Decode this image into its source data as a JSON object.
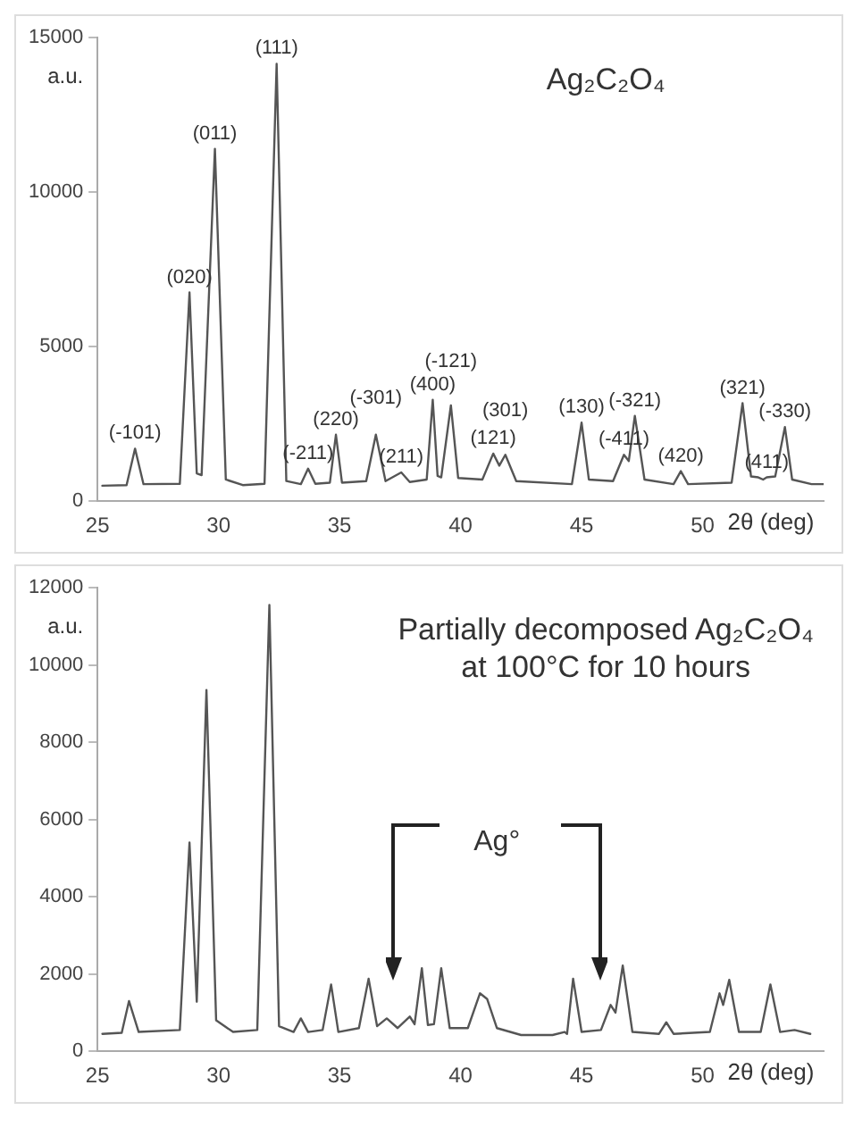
{
  "chart_data": [
    {
      "type": "line",
      "title": "Ag₂C₂O₄",
      "xlabel": "2θ (deg)",
      "ylabel": "a.u.",
      "xlim": [
        25,
        55
      ],
      "xticks": [
        25,
        30,
        35,
        40,
        45,
        50
      ],
      "ylim": [
        0,
        15000
      ],
      "yticks": [
        0,
        5000,
        10000,
        15000
      ],
      "grid": false,
      "legend": false,
      "marker": "none",
      "line_style": "solid",
      "series": [
        {
          "color": "#555555",
          "x": [
            25.2,
            26.2,
            26.55,
            26.9,
            28.4,
            28.8,
            29.1,
            29.3,
            29.85,
            30.3,
            31.0,
            31.9,
            32.4,
            32.8,
            33.4,
            33.7,
            34.0,
            34.6,
            34.85,
            35.1,
            36.1,
            36.5,
            36.9,
            37.55,
            37.9,
            38.6,
            38.85,
            39.05,
            39.2,
            39.6,
            39.9,
            40.9,
            41.35,
            41.6,
            41.85,
            42.3,
            44.6,
            45.0,
            45.3,
            46.3,
            46.75,
            46.95,
            47.2,
            47.6,
            48.8,
            49.1,
            49.4,
            51.2,
            51.65,
            52.0,
            52.3,
            52.5,
            52.65,
            53.0,
            53.4,
            53.7,
            54.5,
            55
          ],
          "values": [
            500,
            520,
            1700,
            550,
            560,
            6750,
            900,
            840,
            11400,
            700,
            520,
            560,
            14150,
            650,
            550,
            1050,
            560,
            600,
            2150,
            600,
            650,
            2150,
            650,
            930,
            620,
            700,
            3280,
            820,
            770,
            3100,
            750,
            700,
            1540,
            1150,
            1500,
            650,
            550,
            2540,
            700,
            650,
            1500,
            1300,
            2760,
            700,
            550,
            970,
            550,
            600,
            3170,
            800,
            770,
            700,
            770,
            800,
            2400,
            700,
            550,
            550
          ]
        }
      ],
      "annotations": [
        {
          "text": "(-101)",
          "x": 26.55,
          "y": 1700
        },
        {
          "text": "(020)",
          "x": 28.8,
          "y": 6750
        },
        {
          "text": "(011)",
          "x": 29.85,
          "y": 11400
        },
        {
          "text": "(111)",
          "x": 32.4,
          "y": 14150
        },
        {
          "text": "(-211)",
          "x": 33.7,
          "y": 1050
        },
        {
          "text": "(220)",
          "x": 34.85,
          "y": 2150
        },
        {
          "text": "(-301)",
          "x": 36.5,
          "y": 2150
        },
        {
          "text": "(211)",
          "x": 37.55,
          "y": 930
        },
        {
          "text": "(400)",
          "x": 38.85,
          "y": 3280
        },
        {
          "text": "(-121)",
          "x": 39.6,
          "y": 3100
        },
        {
          "text": "(121)",
          "x": 41.35,
          "y": 1540
        },
        {
          "text": "(301)",
          "x": 41.85,
          "y": 1500
        },
        {
          "text": "(130)",
          "x": 45.0,
          "y": 2540
        },
        {
          "text": "(-411)",
          "x": 46.75,
          "y": 1500
        },
        {
          "text": "(-321)",
          "x": 47.2,
          "y": 2760
        },
        {
          "text": "(420)",
          "x": 49.1,
          "y": 970
        },
        {
          "text": "(321)",
          "x": 51.65,
          "y": 3170
        },
        {
          "text": "(411)",
          "x": 52.65,
          "y": 770
        },
        {
          "text": "(-330)",
          "x": 53.4,
          "y": 2400
        }
      ]
    },
    {
      "type": "line",
      "title": "Partially decomposed Ag₂C₂O₄ at 100°C for 10 hours",
      "xlabel": "2θ (deg)",
      "ylabel": "a.u.",
      "xlim": [
        25,
        55
      ],
      "xticks": [
        25,
        30,
        35,
        40,
        45,
        50
      ],
      "ylim": [
        0,
        12000
      ],
      "yticks": [
        0,
        2000,
        4000,
        6000,
        8000,
        10000,
        12000
      ],
      "grid": false,
      "legend": false,
      "marker": "none",
      "line_style": "solid",
      "series": [
        {
          "color": "#555555",
          "x": [
            25.2,
            26.0,
            26.3,
            26.7,
            28.4,
            28.8,
            29.1,
            29.5,
            29.9,
            30.6,
            31.6,
            32.1,
            32.5,
            33.1,
            33.4,
            33.7,
            34.3,
            34.65,
            34.95,
            35.8,
            36.2,
            36.55,
            36.95,
            37.4,
            37.9,
            38.1,
            38.4,
            38.65,
            38.9,
            39.2,
            39.55,
            40.3,
            40.8,
            41.1,
            41.5,
            42.5,
            43.8,
            44.3,
            44.4,
            44.65,
            45.0,
            45.8,
            46.2,
            46.4,
            46.7,
            47.1,
            48.2,
            48.5,
            48.8,
            50.3,
            50.7,
            50.85,
            51.1,
            51.5,
            52.4,
            52.8,
            53.2,
            53.8,
            54.45
          ],
          "values": [
            450,
            480,
            1300,
            500,
            550,
            5400,
            1280,
            9350,
            800,
            500,
            550,
            11550,
            650,
            500,
            850,
            500,
            550,
            1730,
            500,
            600,
            1880,
            650,
            850,
            600,
            900,
            700,
            2150,
            680,
            700,
            2150,
            600,
            600,
            1500,
            1350,
            600,
            420,
            420,
            500,
            450,
            1880,
            500,
            550,
            1200,
            1000,
            2220,
            500,
            450,
            750,
            450,
            500,
            1500,
            1200,
            1850,
            500,
            500,
            1730,
            500,
            550,
            450
          ]
        }
      ],
      "annotations": [
        "Ag°"
      ]
    }
  ]
}
